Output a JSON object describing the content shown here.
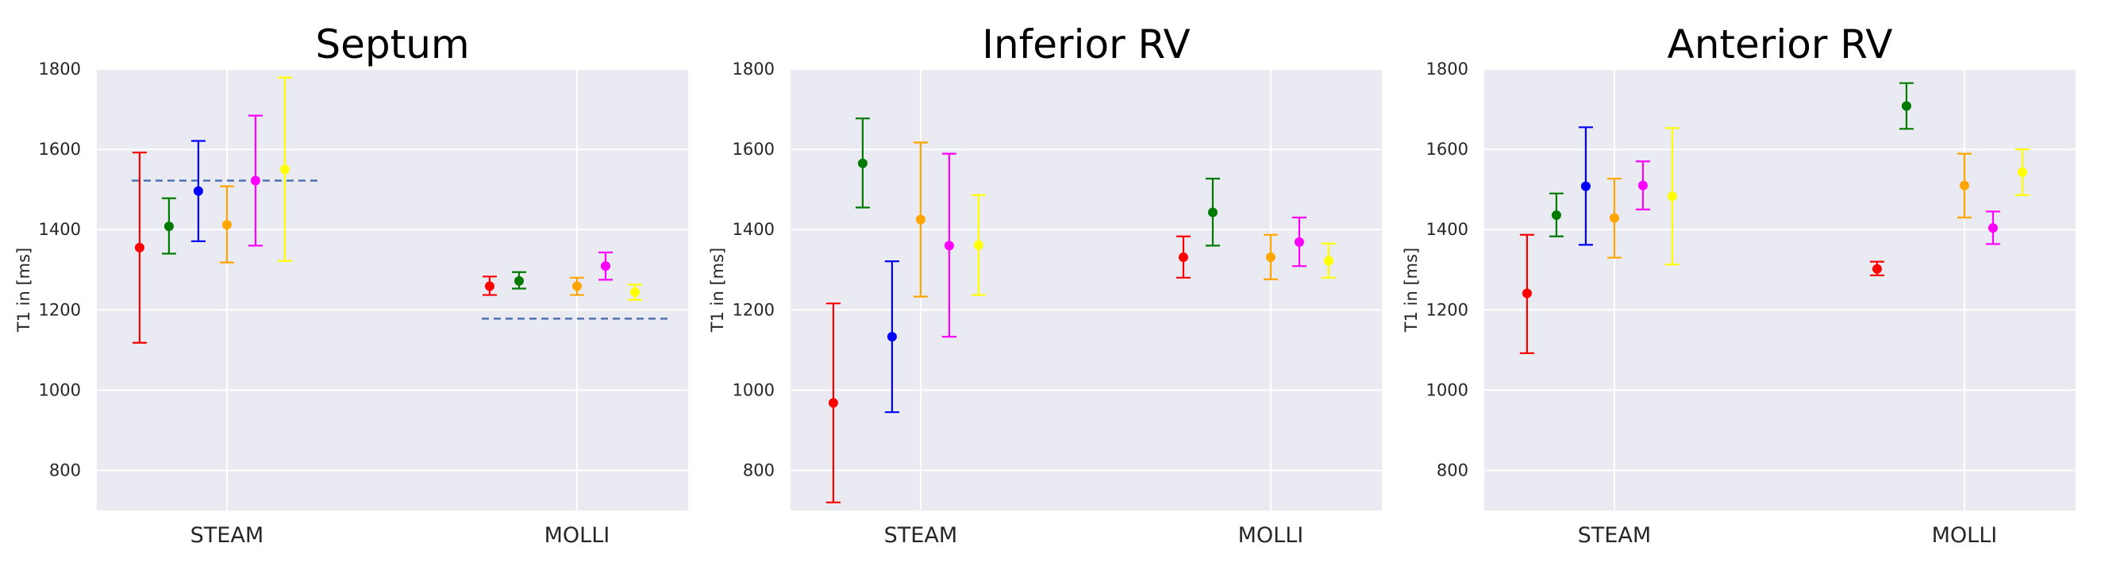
{
  "chart_data": [
    {
      "type": "errorbar",
      "title": "Septum",
      "xlabel": "",
      "ylabel": "T1 in [ms]",
      "ylim": [
        700,
        1800
      ],
      "yticks": [
        800,
        1000,
        1200,
        1400,
        1600,
        1800
      ],
      "categories": [
        "STEAM",
        "MOLLI"
      ],
      "grid": true,
      "colors": [
        "#ff0000",
        "#007a00",
        "#0000ff",
        "#ffa500",
        "#ff00ff",
        "#ffff00"
      ],
      "groups": [
        {
          "category": "STEAM",
          "reference_line": 1522,
          "points": [
            {
              "value": 1355,
              "low": 1118,
              "high": 1592
            },
            {
              "value": 1408,
              "low": 1340,
              "high": 1478
            },
            {
              "value": 1496,
              "low": 1371,
              "high": 1621
            },
            {
              "value": 1412,
              "low": 1318,
              "high": 1508
            },
            {
              "value": 1522,
              "low": 1360,
              "high": 1684
            },
            {
              "value": 1550,
              "low": 1322,
              "high": 1779
            }
          ]
        },
        {
          "category": "MOLLI",
          "reference_line": 1178,
          "points": [
            {
              "value": 1259,
              "low": 1237,
              "high": 1283
            },
            {
              "value": 1272,
              "low": 1253,
              "high": 1294
            },
            null,
            {
              "value": 1259,
              "low": 1237,
              "high": 1280
            },
            {
              "value": 1309,
              "low": 1275,
              "high": 1343
            },
            {
              "value": 1244,
              "low": 1225,
              "high": 1263
            }
          ]
        }
      ]
    },
    {
      "type": "errorbar",
      "title": "Inferior RV",
      "xlabel": "",
      "ylabel": "T1 in [ms]",
      "ylim": [
        700,
        1800
      ],
      "yticks": [
        800,
        1000,
        1200,
        1400,
        1600,
        1800
      ],
      "categories": [
        "STEAM",
        "MOLLI"
      ],
      "grid": true,
      "colors": [
        "#ff0000",
        "#007a00",
        "#0000ff",
        "#ffa500",
        "#ff00ff",
        "#ffff00"
      ],
      "groups": [
        {
          "category": "STEAM",
          "reference_line": null,
          "points": [
            {
              "value": 968,
              "low": 720,
              "high": 1216
            },
            {
              "value": 1565,
              "low": 1455,
              "high": 1677
            },
            {
              "value": 1133,
              "low": 945,
              "high": 1321
            },
            {
              "value": 1425,
              "low": 1233,
              "high": 1617
            },
            {
              "value": 1360,
              "low": 1133,
              "high": 1589
            },
            {
              "value": 1361,
              "low": 1237,
              "high": 1486
            }
          ]
        },
        {
          "category": "MOLLI",
          "reference_line": null,
          "points": [
            {
              "value": 1331,
              "low": 1280,
              "high": 1383
            },
            {
              "value": 1443,
              "low": 1360,
              "high": 1527
            },
            null,
            {
              "value": 1331,
              "low": 1276,
              "high": 1387
            },
            {
              "value": 1369,
              "low": 1309,
              "high": 1430
            },
            {
              "value": 1322,
              "low": 1280,
              "high": 1365
            }
          ]
        }
      ]
    },
    {
      "type": "errorbar",
      "title": "Anterior RV",
      "xlabel": "",
      "ylabel": "T1 in [ms]",
      "ylim": [
        700,
        1800
      ],
      "yticks": [
        800,
        1000,
        1200,
        1400,
        1600,
        1800
      ],
      "categories": [
        "STEAM",
        "MOLLI"
      ],
      "grid": true,
      "colors": [
        "#ff0000",
        "#007a00",
        "#0000ff",
        "#ffa500",
        "#ff00ff",
        "#ffff00"
      ],
      "groups": [
        {
          "category": "STEAM",
          "reference_line": null,
          "points": [
            {
              "value": 1241,
              "low": 1092,
              "high": 1387
            },
            {
              "value": 1436,
              "low": 1383,
              "high": 1490
            },
            {
              "value": 1508,
              "low": 1362,
              "high": 1655
            },
            {
              "value": 1429,
              "low": 1330,
              "high": 1527
            },
            {
              "value": 1510,
              "low": 1450,
              "high": 1570
            },
            {
              "value": 1483,
              "low": 1313,
              "high": 1653
            }
          ]
        },
        {
          "category": "MOLLI",
          "reference_line": null,
          "points": [
            {
              "value": 1302,
              "low": 1286,
              "high": 1320
            },
            {
              "value": 1708,
              "low": 1651,
              "high": 1765
            },
            null,
            {
              "value": 1510,
              "low": 1430,
              "high": 1589
            },
            {
              "value": 1404,
              "low": 1364,
              "high": 1445
            },
            {
              "value": 1543,
              "low": 1486,
              "high": 1600
            }
          ]
        }
      ]
    }
  ]
}
